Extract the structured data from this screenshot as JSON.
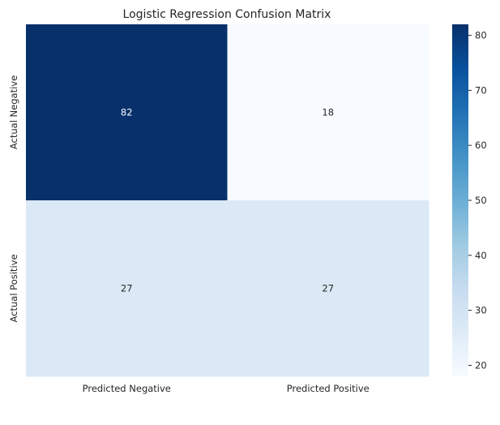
{
  "chart_data": {
    "type": "heatmap",
    "title": "Logistic Regression Confusion Matrix",
    "x_categories": [
      "Predicted Negative",
      "Predicted Positive"
    ],
    "y_categories": [
      "Actual Negative",
      "Actual Positive"
    ],
    "values": [
      [
        82,
        18
      ],
      [
        27,
        27
      ]
    ],
    "colormap": "Blues",
    "colorbar": {
      "range": [
        18,
        82
      ],
      "ticks": [
        20,
        30,
        40,
        50,
        60,
        70,
        80
      ]
    },
    "annotations": true,
    "grid": false
  }
}
